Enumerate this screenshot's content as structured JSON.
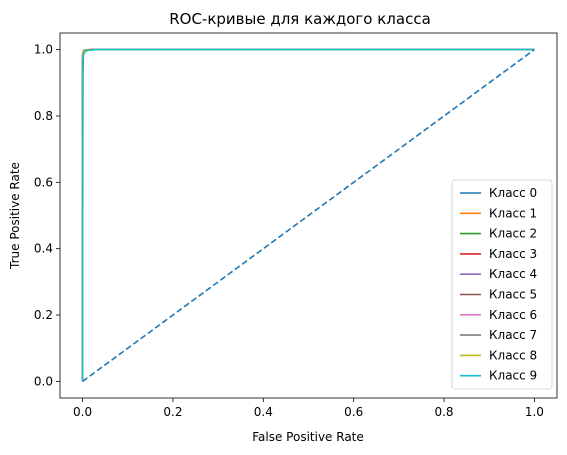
{
  "chart_data": {
    "type": "line",
    "title": "ROC-кривые для каждого класса",
    "xlabel": "False Positive Rate",
    "ylabel": "True Positive Rate",
    "xlim": [
      -0.05,
      1.05
    ],
    "ylim": [
      -0.05,
      1.05
    ],
    "xticks": [
      "0.0",
      "0.2",
      "0.4",
      "0.6",
      "0.8",
      "1.0"
    ],
    "yticks": [
      "0.0",
      "0.2",
      "0.4",
      "0.6",
      "0.8",
      "1.0"
    ],
    "grid": false,
    "legend_position": "lower-right",
    "diagonal": {
      "x": [
        0,
        1
      ],
      "y": [
        0,
        1
      ],
      "color": "#1f77b4",
      "style": "dashed"
    },
    "series": [
      {
        "name": "Класс 0",
        "color": "#1f77b4",
        "x": [
          0,
          0,
          0.002,
          0.006,
          0.02,
          1
        ],
        "y": [
          0,
          0.985,
          0.997,
          0.999,
          1.0,
          1.0
        ]
      },
      {
        "name": "Класс 1",
        "color": "#ff7f0e",
        "x": [
          0,
          0,
          0.002,
          0.006,
          0.02,
          1
        ],
        "y": [
          0,
          0.985,
          0.995,
          0.999,
          1.0,
          1.0
        ]
      },
      {
        "name": "Класс 2",
        "color": "#2ca02c",
        "x": [
          0,
          0,
          0.002,
          0.006,
          0.02,
          1
        ],
        "y": [
          0,
          0.98,
          0.994,
          0.998,
          1.0,
          1.0
        ]
      },
      {
        "name": "Класс 3",
        "color": "#d62728",
        "x": [
          0,
          0,
          0.002,
          0.006,
          0.02,
          1
        ],
        "y": [
          0,
          0.98,
          0.994,
          0.998,
          1.0,
          1.0
        ]
      },
      {
        "name": "Класс 4",
        "color": "#9467bd",
        "x": [
          0,
          0,
          0.002,
          0.006,
          0.02,
          1
        ],
        "y": [
          0,
          0.98,
          0.994,
          0.998,
          1.0,
          1.0
        ]
      },
      {
        "name": "Класс 5",
        "color": "#8c564b",
        "x": [
          0,
          0,
          0.002,
          0.006,
          0.02,
          1
        ],
        "y": [
          0,
          0.98,
          0.994,
          0.998,
          1.0,
          1.0
        ]
      },
      {
        "name": "Класс 6",
        "color": "#e377c2",
        "x": [
          0,
          0,
          0.002,
          0.006,
          0.02,
          1
        ],
        "y": [
          0,
          0.98,
          0.994,
          0.998,
          1.0,
          1.0
        ]
      },
      {
        "name": "Класс 7",
        "color": "#7f7f7f",
        "x": [
          0,
          0,
          0.001,
          0.002,
          0.006,
          0.02,
          1
        ],
        "y": [
          0,
          0.34,
          0.93,
          0.99,
          0.998,
          1.0,
          1.0
        ]
      },
      {
        "name": "Класс 8",
        "color": "#bcbd22",
        "x": [
          0,
          0,
          0.002,
          0.006,
          0.02,
          1
        ],
        "y": [
          0,
          0.98,
          0.994,
          0.998,
          1.0,
          1.0
        ]
      },
      {
        "name": "Класс 9",
        "color": "#17becf",
        "x": [
          0,
          0,
          0.002,
          0.005,
          0.01,
          0.03,
          1
        ],
        "y": [
          0,
          0.96,
          0.985,
          0.993,
          0.997,
          1.0,
          1.0
        ]
      }
    ]
  }
}
